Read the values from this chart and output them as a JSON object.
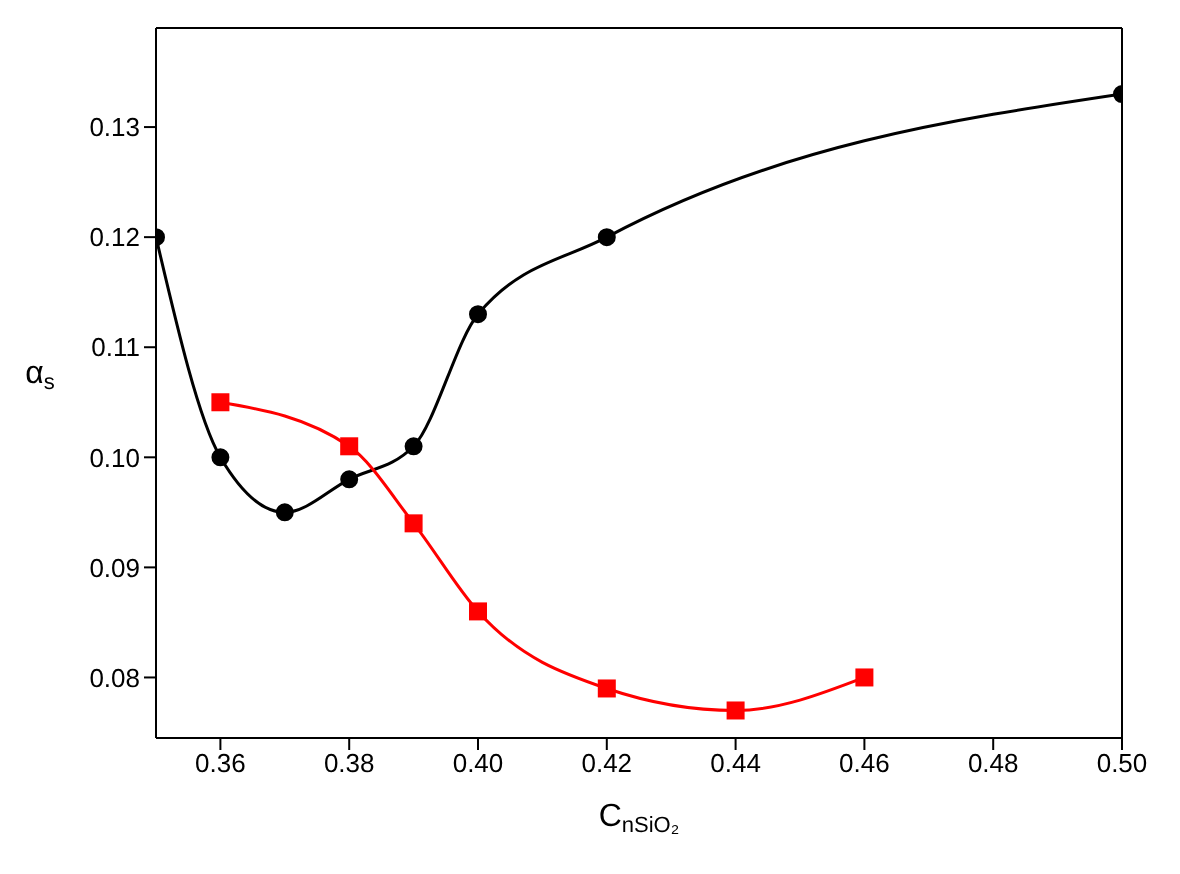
{
  "chart_data": {
    "type": "line",
    "xlabel": "C$_{nSiO₂}$",
    "ylabel": "α$_{s}$",
    "series": [
      {
        "color": "#000000",
        "x": [
          0.35,
          0.36,
          0.37,
          0.38,
          0.39,
          0.4,
          0.42,
          0.5
        ],
        "values": [
          0.12,
          0.1,
          0.095,
          0.098,
          0.101,
          0.113,
          0.12,
          0.133
        ]
      },
      {
        "color": "#ff0000",
        "marker": "square",
        "x": [
          0.36,
          0.38,
          0.39,
          0.4,
          0.42,
          0.44,
          0.46
        ],
        "values": [
          0.105,
          0.101,
          0.094,
          0.086,
          0.079,
          0.077,
          0.08
        ]
      }
    ],
    "marker": "circle",
    "xlim": [
      0.35,
      0.5
    ],
    "xticks": [
      0.36,
      0.38,
      {
        "value": 0.4,
        "label": "0.40"
      },
      0.42,
      0.44,
      0.46,
      0.48,
      {
        "value": 0.5,
        "label": "0.50"
      }
    ],
    "ylim": [
      0.0745,
      0.139
    ],
    "yticks": [
      0.08,
      0.09,
      {
        "value": 0.1,
        "label": "0.10"
      },
      0.11,
      0.12,
      0.13
    ],
    "legend": false
  }
}
